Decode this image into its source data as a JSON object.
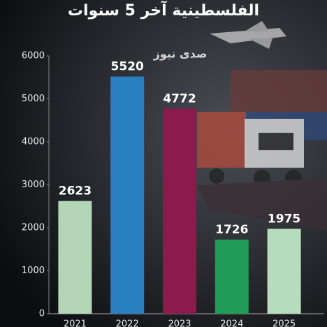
{
  "chart_data": {
    "type": "bar",
    "title": "الفلسطينية آخر 5 سنوات",
    "watermark": "صدى نيوز",
    "categories": [
      "2021",
      "2022",
      "2023",
      "2024",
      "2025"
    ],
    "values": [
      2623,
      5520,
      4772,
      1726,
      1975
    ],
    "colors": [
      "#b3d5b6",
      "#2a7fc0",
      "#8c1a4c",
      "#1f9b55",
      "#b6dbbd"
    ],
    "ylim": [
      0,
      6000
    ],
    "yticks": [
      0,
      1000,
      2000,
      3000,
      4000,
      5000,
      6000
    ],
    "grid": false
  }
}
